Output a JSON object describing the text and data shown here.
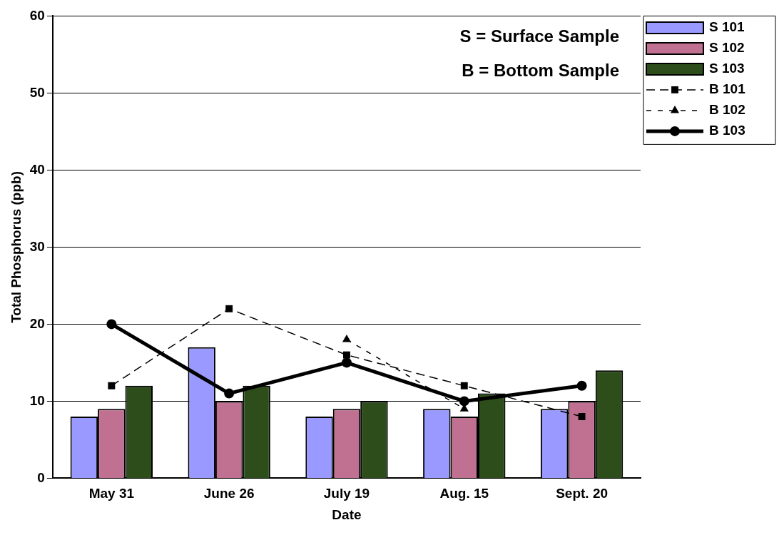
{
  "chart_data": {
    "type": "bar",
    "xlabel": "Date",
    "ylabel": "Total Phosphorus (ppb)",
    "categories": [
      "May 31",
      "June 26",
      "July 19",
      "Aug. 15",
      "Sept. 20"
    ],
    "series": [
      {
        "name": "S 101",
        "color": "#9999ff",
        "values": [
          8,
          17,
          8,
          9,
          9
        ]
      },
      {
        "name": "S 102",
        "color": "#c07090",
        "values": [
          9,
          10,
          9,
          8,
          10
        ]
      },
      {
        "name": "S 103",
        "color": "#2d4d1a",
        "values": [
          12,
          12,
          10,
          11,
          14
        ]
      },
      {
        "name": "B 101",
        "type": "line",
        "color": "#000000",
        "marker": "square",
        "line_style": "dashed",
        "values": [
          12,
          22,
          16,
          12,
          8
        ]
      },
      {
        "name": "B 102",
        "type": "line",
        "color": "#000000",
        "marker": "triangle",
        "line_style": "dotted",
        "values": [
          null,
          null,
          18,
          9,
          null
        ]
      },
      {
        "name": "B 103",
        "type": "line",
        "color": "#000000",
        "marker": "circle",
        "line_style": "solid",
        "values": [
          20,
          11,
          15,
          10,
          12
        ]
      }
    ],
    "ylim": [
      0,
      60
    ],
    "yticks": [
      0,
      10,
      20,
      30,
      40,
      50,
      60
    ],
    "grid": "y",
    "legend": "top right",
    "annotations": [
      "S = Surface Sample",
      "B = Bottom Sample"
    ]
  }
}
